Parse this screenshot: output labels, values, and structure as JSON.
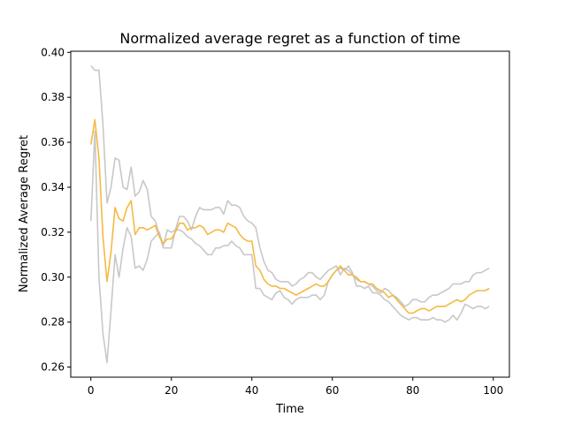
{
  "chart_data": {
    "type": "line",
    "title": "Normalized average regret as a function of time",
    "xlabel": "Time",
    "ylabel": "Normalized Average Regret",
    "xlim": [
      -5,
      104
    ],
    "ylim": [
      0.2555,
      0.4005
    ],
    "x_ticks": [
      0,
      20,
      40,
      60,
      80,
      100
    ],
    "y_ticks": [
      0.26,
      0.28,
      0.3,
      0.32,
      0.34,
      0.36,
      0.38,
      0.4
    ],
    "grid": false,
    "x": [
      0,
      1,
      2,
      3,
      4,
      5,
      6,
      7,
      8,
      9,
      10,
      11,
      12,
      13,
      14,
      15,
      16,
      17,
      18,
      19,
      20,
      21,
      22,
      23,
      24,
      25,
      26,
      27,
      28,
      29,
      30,
      31,
      32,
      33,
      34,
      35,
      36,
      37,
      38,
      39,
      40,
      41,
      42,
      43,
      44,
      45,
      46,
      47,
      48,
      49,
      50,
      51,
      52,
      53,
      54,
      55,
      56,
      57,
      58,
      59,
      60,
      61,
      62,
      63,
      64,
      65,
      66,
      67,
      68,
      69,
      70,
      71,
      72,
      73,
      74,
      75,
      76,
      77,
      78,
      79,
      80,
      81,
      82,
      83,
      84,
      85,
      86,
      87,
      88,
      89,
      90,
      91,
      92,
      93,
      94,
      95,
      96,
      97,
      98,
      99
    ],
    "series": [
      {
        "color": "#f5b942",
        "values": [
          0.359,
          0.37,
          0.353,
          0.318,
          0.298,
          0.311,
          0.331,
          0.326,
          0.325,
          0.331,
          0.334,
          0.319,
          0.322,
          0.322,
          0.321,
          0.322,
          0.323,
          0.318,
          0.315,
          0.317,
          0.317,
          0.32,
          0.324,
          0.324,
          0.321,
          0.322,
          0.322,
          0.323,
          0.322,
          0.319,
          0.32,
          0.321,
          0.321,
          0.32,
          0.324,
          0.323,
          0.322,
          0.319,
          0.317,
          0.316,
          0.316,
          0.305,
          0.303,
          0.299,
          0.297,
          0.296,
          0.296,
          0.295,
          0.295,
          0.294,
          0.293,
          0.292,
          0.293,
          0.294,
          0.295,
          0.296,
          0.297,
          0.296,
          0.296,
          0.298,
          0.301,
          0.303,
          0.305,
          0.303,
          0.301,
          0.301,
          0.3,
          0.298,
          0.298,
          0.297,
          0.297,
          0.295,
          0.294,
          0.293,
          0.291,
          0.292,
          0.29,
          0.288,
          0.286,
          0.284,
          0.284,
          0.285,
          0.286,
          0.286,
          0.285,
          0.286,
          0.287,
          0.287,
          0.287,
          0.288,
          0.289,
          0.29,
          0.289,
          0.29,
          0.292,
          0.293,
          0.294,
          0.294,
          0.294,
          0.295
        ]
      },
      {
        "color": "#c8c8c8",
        "values": [
          0.394,
          0.392,
          0.392,
          0.368,
          0.333,
          0.34,
          0.353,
          0.352,
          0.34,
          0.339,
          0.349,
          0.336,
          0.338,
          0.343,
          0.339,
          0.327,
          0.325,
          0.319,
          0.313,
          0.313,
          0.313,
          0.321,
          0.327,
          0.327,
          0.325,
          0.321,
          0.327,
          0.331,
          0.33,
          0.33,
          0.33,
          0.331,
          0.331,
          0.328,
          0.334,
          0.332,
          0.332,
          0.331,
          0.327,
          0.325,
          0.324,
          0.322,
          0.313,
          0.307,
          0.303,
          0.302,
          0.299,
          0.298,
          0.298,
          0.298,
          0.296,
          0.297,
          0.299,
          0.3,
          0.302,
          0.302,
          0.3,
          0.299,
          0.301,
          0.303,
          0.304,
          0.305,
          0.301,
          0.304,
          0.303,
          0.301,
          0.299,
          0.298,
          0.298,
          0.297,
          0.296,
          0.294,
          0.293,
          0.295,
          0.294,
          0.292,
          0.291,
          0.289,
          0.287,
          0.288,
          0.29,
          0.29,
          0.289,
          0.289,
          0.291,
          0.292,
          0.292,
          0.293,
          0.294,
          0.295,
          0.297,
          0.297,
          0.297,
          0.298,
          0.298,
          0.301,
          0.302,
          0.302,
          0.303,
          0.304
        ]
      },
      {
        "color": "#c8c8c8",
        "values": [
          0.325,
          0.365,
          0.3,
          0.275,
          0.262,
          0.285,
          0.31,
          0.3,
          0.313,
          0.322,
          0.318,
          0.304,
          0.305,
          0.303,
          0.308,
          0.316,
          0.318,
          0.32,
          0.314,
          0.321,
          0.32,
          0.321,
          0.321,
          0.32,
          0.318,
          0.317,
          0.315,
          0.314,
          0.312,
          0.31,
          0.31,
          0.313,
          0.313,
          0.314,
          0.314,
          0.316,
          0.314,
          0.313,
          0.31,
          0.31,
          0.31,
          0.295,
          0.295,
          0.292,
          0.291,
          0.29,
          0.293,
          0.294,
          0.291,
          0.29,
          0.288,
          0.29,
          0.291,
          0.291,
          0.291,
          0.292,
          0.292,
          0.29,
          0.292,
          0.298,
          0.301,
          0.303,
          0.304,
          0.303,
          0.305,
          0.302,
          0.296,
          0.296,
          0.295,
          0.296,
          0.293,
          0.293,
          0.292,
          0.29,
          0.289,
          0.287,
          0.285,
          0.283,
          0.282,
          0.281,
          0.282,
          0.282,
          0.281,
          0.281,
          0.281,
          0.282,
          0.281,
          0.281,
          0.28,
          0.281,
          0.283,
          0.281,
          0.284,
          0.288,
          0.287,
          0.286,
          0.287,
          0.287,
          0.286,
          0.287
        ]
      }
    ]
  }
}
